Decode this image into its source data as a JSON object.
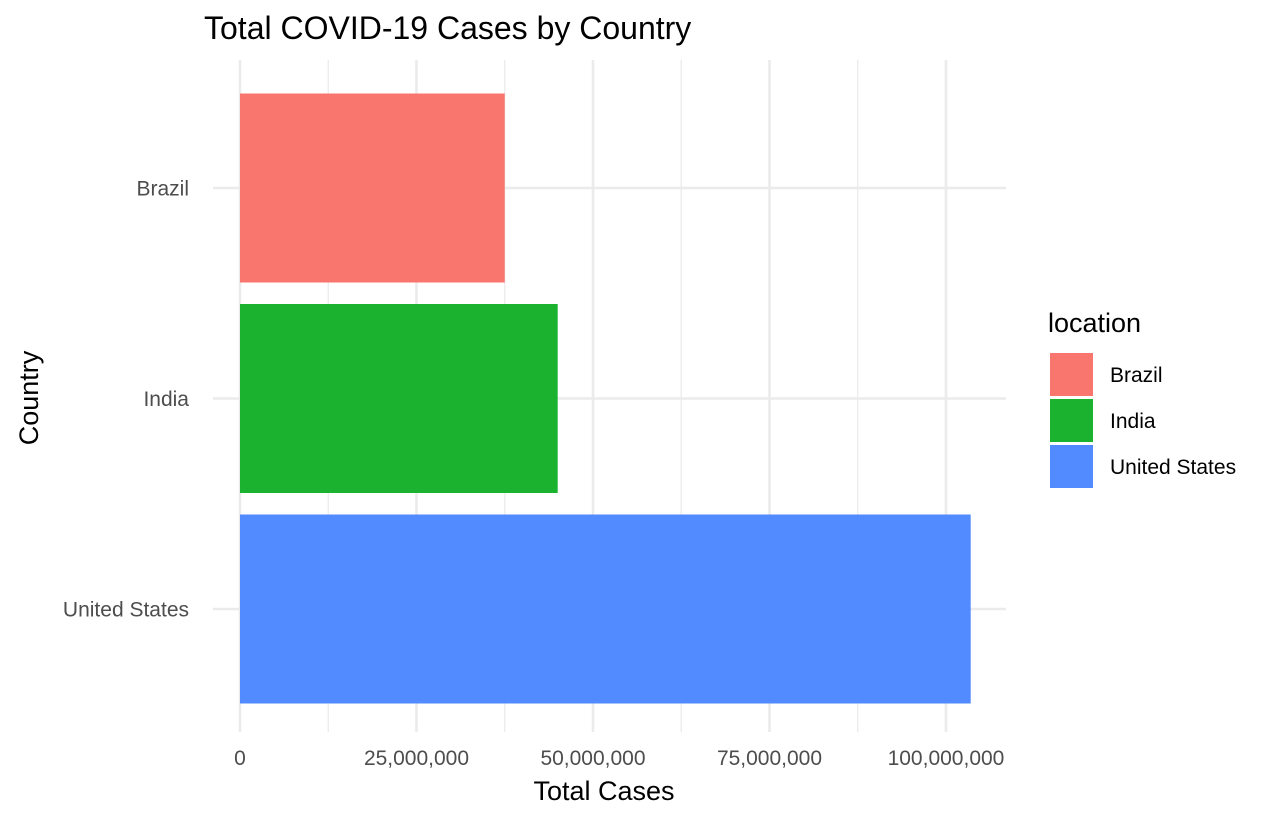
{
  "chart_data": {
    "type": "bar",
    "orientation": "horizontal",
    "title": "Total COVID-19 Cases by Country",
    "xlabel": "Total Cases",
    "ylabel": "Country",
    "categories": [
      "Brazil",
      "India",
      "United States"
    ],
    "values": [
      37500000,
      45000000,
      103500000
    ],
    "colors": [
      "#F8766D",
      "#1AB22F",
      "#528AFF"
    ],
    "xlim": [
      0,
      108500000
    ],
    "x_ticks": [
      0,
      25000000,
      50000000,
      75000000,
      100000000
    ],
    "x_tick_labels": [
      "0",
      "25,000,000",
      "50,000,000",
      "75,000,000",
      "100,000,000"
    ],
    "grid": true,
    "legend": {
      "title": "location",
      "placement": "right",
      "entries": [
        "Brazil",
        "India",
        "United States"
      ]
    }
  }
}
